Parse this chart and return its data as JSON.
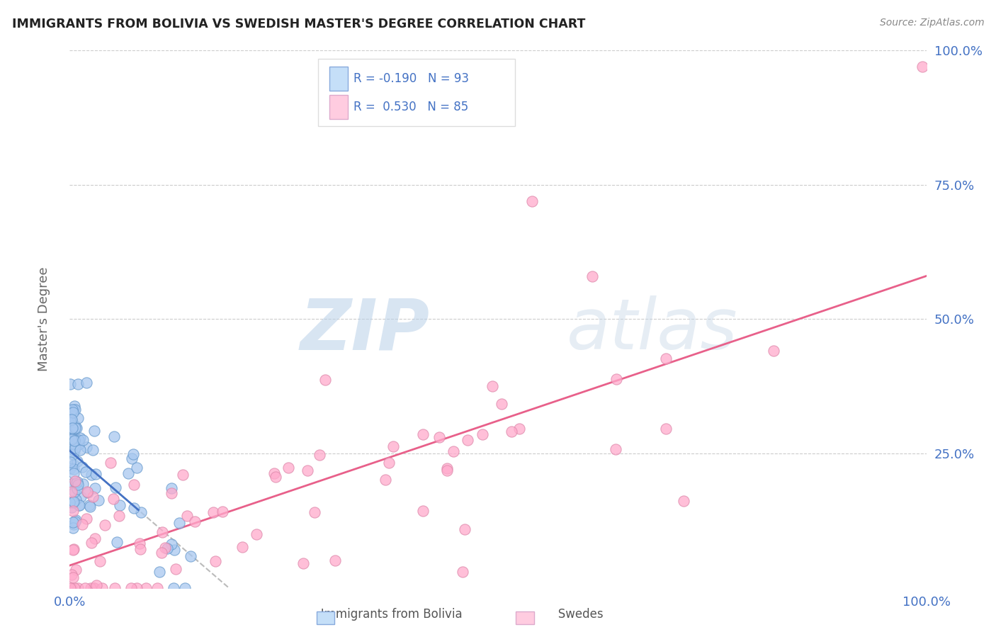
{
  "title": "IMMIGRANTS FROM BOLIVIA VS SWEDISH MASTER'S DEGREE CORRELATION CHART",
  "source_text": "Source: ZipAtlas.com",
  "ylabel": "Master's Degree",
  "xlim": [
    0.0,
    1.0
  ],
  "ylim": [
    0.0,
    1.0
  ],
  "watermark_zip": "ZIP",
  "watermark_atlas": "atlas",
  "legend_text1": "R = -0.190   N = 93",
  "legend_text2": "R =  0.530   N = 85",
  "blue_scatter_color": "#a8c8f0",
  "pink_scatter_color": "#ffaacc",
  "blue_line_color": "#4472c4",
  "pink_line_color": "#e8608a",
  "grey_line_color": "#bbbbbb",
  "axis_label_color": "#4472c4",
  "grid_color": "#cccccc",
  "background_color": "#ffffff",
  "title_color": "#222222",
  "legend_blue_fill": "#c5dff8",
  "legend_pink_fill": "#ffcce0",
  "legend_border": "#dddddd"
}
